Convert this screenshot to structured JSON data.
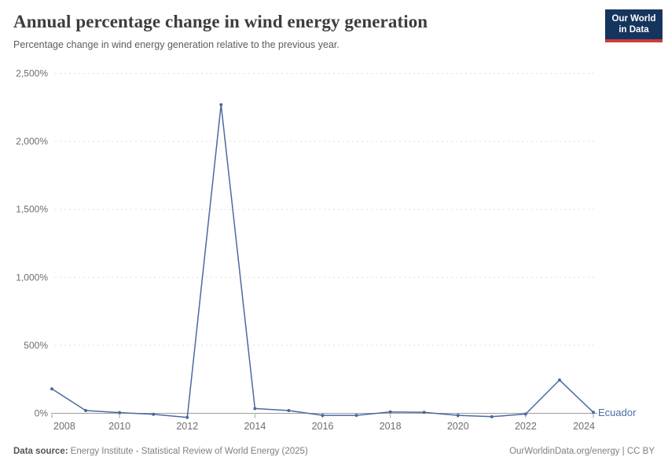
{
  "header": {
    "title": "Annual percentage change in wind energy generation",
    "subtitle": "Percentage change in wind energy generation relative to the previous year.",
    "logo": {
      "line1": "Our World",
      "line2": "in Data"
    }
  },
  "chart_data": {
    "type": "line",
    "title": "Annual percentage change in wind energy generation",
    "subtitle": "Percentage change in wind energy generation relative to the previous year.",
    "x": [
      2008,
      2009,
      2010,
      2011,
      2012,
      2013,
      2014,
      2015,
      2016,
      2017,
      2018,
      2019,
      2020,
      2021,
      2022,
      2023,
      2024
    ],
    "series": [
      {
        "name": "Ecuador",
        "color": "#4a6aa0",
        "values": [
          180,
          20,
          5,
          -7,
          -30,
          2270,
          35,
          20,
          -15,
          -15,
          10,
          7,
          -15,
          -25,
          -5,
          245,
          7
        ]
      }
    ],
    "entity_label": "Ecuador",
    "entity_label_color": "#4d6ba8",
    "xlabel": "",
    "ylabel": "",
    "x_ticks": [
      2008,
      2010,
      2012,
      2014,
      2016,
      2018,
      2020,
      2022,
      2024
    ],
    "y_ticks": [
      0,
      500,
      1000,
      1500,
      2000,
      2500
    ],
    "y_tick_labels": [
      "0%",
      "500%",
      "1,000%",
      "1,500%",
      "2,000%",
      "2,500%"
    ],
    "ylim": [
      -40,
      2500
    ],
    "xlim": [
      2008,
      2024
    ],
    "grid": "horizontal-dashed",
    "legend_position": "end-of-line",
    "colors": {
      "gridline": "#dddddd",
      "axis_line": "#9e9e9e",
      "tick_label": "#6e6e6e"
    }
  },
  "footer": {
    "source_label": "Data source:",
    "source_text": "Energy Institute - Statistical Review of World Energy (2025)",
    "attribution": "OurWorldinData.org/energy | CC BY"
  }
}
